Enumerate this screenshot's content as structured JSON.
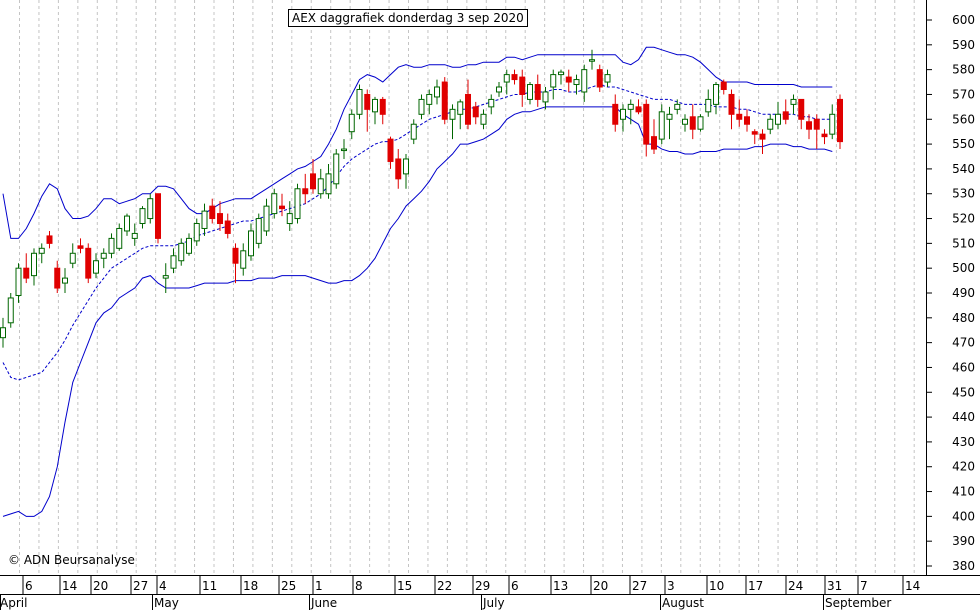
{
  "chart_data": {
    "type": "candlestick",
    "title": "AEX daggrafiek donderdag 3 sep 2020",
    "copyright": "© ADN Beursanalyse",
    "ylim": [
      375,
      605
    ],
    "y_ticks": [
      380,
      390,
      400,
      410,
      420,
      430,
      440,
      450,
      460,
      470,
      480,
      490,
      500,
      510,
      520,
      530,
      540,
      550,
      560,
      570,
      580,
      590,
      600
    ],
    "grid": true,
    "x_day_ticks": [
      {
        "label": "6"
      },
      {
        "label": "14"
      },
      {
        "label": "20"
      },
      {
        "label": "27"
      },
      {
        "label": "4"
      },
      {
        "label": "11"
      },
      {
        "label": "18"
      },
      {
        "label": "25"
      },
      {
        "label": "1"
      },
      {
        "label": "8"
      },
      {
        "label": "15"
      },
      {
        "label": "22"
      },
      {
        "label": "29"
      },
      {
        "label": "6"
      },
      {
        "label": "13"
      },
      {
        "label": "20"
      },
      {
        "label": "27"
      },
      {
        "label": "3"
      },
      {
        "label": "10"
      },
      {
        "label": "17"
      },
      {
        "label": "24"
      },
      {
        "label": "31"
      },
      {
        "label": "7"
      },
      {
        "label": "14"
      }
    ],
    "x_months": [
      "April",
      "May",
      "June",
      "July",
      "August",
      "September"
    ],
    "series": [
      {
        "values": [
          [
            472,
            480,
            468,
            476
          ],
          [
            478,
            490,
            476,
            488
          ],
          [
            489,
            502,
            486,
            500
          ],
          [
            500,
            506,
            494,
            496
          ],
          [
            497,
            508,
            493,
            506
          ],
          [
            506,
            510,
            502,
            508
          ],
          [
            513,
            515,
            508,
            510
          ],
          [
            500,
            503,
            490,
            492
          ],
          [
            494,
            500,
            490,
            496
          ],
          [
            502,
            510,
            500,
            506
          ],
          [
            509,
            512,
            506,
            508
          ],
          [
            508,
            510,
            494,
            496
          ],
          [
            498,
            506,
            496,
            503
          ],
          [
            504,
            508,
            500,
            506
          ],
          [
            506,
            514,
            504,
            512
          ],
          [
            508,
            518,
            507,
            516
          ],
          [
            515,
            522,
            513,
            521
          ],
          [
            512,
            518,
            509,
            514
          ],
          [
            518,
            525,
            516,
            524
          ],
          [
            520,
            530,
            518,
            528
          ],
          [
            530,
            530,
            510,
            512
          ],
          [
            496,
            502,
            490,
            497
          ],
          [
            500,
            508,
            498,
            505
          ],
          [
            503,
            512,
            501,
            510
          ],
          [
            506,
            514,
            505,
            512
          ],
          [
            511,
            520,
            509,
            518
          ],
          [
            516,
            526,
            513,
            523
          ],
          [
            525,
            528,
            518,
            520
          ],
          [
            522,
            527,
            515,
            518
          ],
          [
            519,
            522,
            512,
            514
          ],
          [
            508,
            510,
            494,
            502
          ],
          [
            500,
            510,
            497,
            507
          ],
          [
            505,
            518,
            503,
            515
          ],
          [
            510,
            522,
            508,
            520
          ],
          [
            515,
            528,
            513,
            525
          ],
          [
            522,
            532,
            520,
            530
          ],
          [
            525,
            530,
            521,
            524
          ],
          [
            518,
            527,
            515,
            522
          ],
          [
            520,
            534,
            518,
            532
          ],
          [
            532,
            538,
            526,
            530
          ],
          [
            538,
            544,
            530,
            532
          ],
          [
            530,
            540,
            528,
            536
          ],
          [
            530,
            542,
            528,
            538
          ],
          [
            534,
            548,
            532,
            546
          ],
          [
            548,
            552,
            544,
            548
          ],
          [
            555,
            564,
            552,
            562
          ],
          [
            562,
            574,
            560,
            572
          ],
          [
            570,
            572,
            555,
            564
          ],
          [
            563,
            569,
            558,
            568
          ],
          [
            568,
            569,
            558,
            562
          ],
          [
            552,
            553,
            540,
            543
          ],
          [
            544,
            548,
            532,
            536
          ],
          [
            538,
            546,
            532,
            544
          ],
          [
            552,
            560,
            550,
            558
          ],
          [
            562,
            570,
            560,
            568
          ],
          [
            566,
            572,
            562,
            570
          ],
          [
            569,
            576,
            566,
            573
          ],
          [
            575,
            577,
            558,
            560
          ],
          [
            560,
            566,
            552,
            564
          ],
          [
            562,
            568,
            556,
            567
          ],
          [
            570,
            576,
            556,
            558
          ],
          [
            565,
            567,
            558,
            561
          ],
          [
            558,
            564,
            556,
            562
          ],
          [
            565,
            570,
            562,
            568
          ],
          [
            571,
            575,
            569,
            573
          ],
          [
            575,
            580,
            570,
            578
          ],
          [
            578,
            580,
            574,
            576
          ],
          [
            577,
            580,
            565,
            570
          ],
          [
            568,
            575,
            566,
            574
          ],
          [
            574,
            578,
            565,
            568
          ],
          [
            567,
            573,
            564,
            571
          ],
          [
            573,
            580,
            568,
            578
          ],
          [
            578,
            580,
            574,
            579
          ],
          [
            577,
            580,
            571,
            575
          ],
          [
            574,
            578,
            570,
            576
          ],
          [
            571,
            582,
            567,
            580
          ],
          [
            584,
            588,
            580,
            584
          ],
          [
            580,
            582,
            571,
            573
          ],
          [
            575,
            580,
            573,
            578
          ],
          [
            566,
            570,
            555,
            558
          ],
          [
            560,
            566,
            555,
            564
          ],
          [
            564,
            568,
            558,
            566
          ],
          [
            565,
            568,
            562,
            563
          ],
          [
            566,
            568,
            545,
            550
          ],
          [
            553,
            560,
            546,
            548
          ],
          [
            552,
            566,
            550,
            563
          ],
          [
            560,
            565,
            552,
            562
          ],
          [
            564,
            568,
            562,
            566
          ],
          [
            558,
            562,
            555,
            560
          ],
          [
            561,
            566,
            552,
            556
          ],
          [
            556,
            562,
            555,
            561
          ],
          [
            563,
            572,
            561,
            568
          ],
          [
            566,
            575,
            562,
            574
          ],
          [
            575,
            576,
            570,
            572
          ],
          [
            570,
            572,
            556,
            562
          ],
          [
            562,
            568,
            557,
            560
          ],
          [
            561,
            564,
            555,
            558
          ],
          [
            555,
            556,
            550,
            554
          ],
          [
            554,
            556,
            546,
            552
          ],
          [
            556,
            562,
            554,
            560
          ],
          [
            558,
            567,
            556,
            562
          ],
          [
            563,
            568,
            558,
            560
          ],
          [
            566,
            570,
            562,
            568
          ],
          [
            568,
            568,
            556,
            560
          ],
          [
            559,
            562,
            552,
            556
          ],
          [
            560,
            562,
            548,
            556
          ],
          [
            554,
            556,
            550,
            553
          ],
          [
            554,
            566,
            552,
            562
          ],
          [
            568,
            570,
            548,
            551
          ]
        ]
      },
      {
        "values": [
          [
            462,
            456,
            455,
            456,
            457,
            458,
            462,
            466,
            471,
            477,
            482,
            487,
            492,
            496,
            500,
            502,
            504,
            506,
            508,
            509,
            509,
            509,
            509,
            510,
            511,
            513,
            514,
            515,
            516,
            517,
            518,
            519,
            519,
            520,
            521,
            522,
            523,
            524,
            525,
            526,
            528,
            530,
            533,
            537,
            541,
            544,
            546,
            548,
            550,
            551,
            551,
            552,
            554,
            556,
            558,
            560,
            561,
            562,
            563,
            564,
            564,
            565,
            566,
            567,
            568,
            569,
            570,
            570,
            571,
            571,
            571,
            572,
            572,
            571,
            571,
            572,
            573,
            574,
            573,
            573,
            572,
            571,
            570,
            569,
            568,
            568,
            568,
            567,
            566,
            566,
            566,
            566,
            565,
            565,
            565,
            564,
            564,
            563,
            562,
            562,
            562,
            562,
            562,
            561,
            561,
            560,
            560,
            560
          ]
        ]
      },
      {
        "values": [
          [
            530,
            512,
            512,
            516,
            522,
            529,
            534,
            532,
            524,
            520,
            520,
            521,
            524,
            528,
            528,
            526,
            527,
            528,
            530,
            530,
            533,
            533,
            532,
            528,
            524,
            522,
            522,
            524,
            526,
            527,
            528,
            528,
            528,
            530,
            532,
            534,
            536,
            538,
            540,
            541,
            543,
            545,
            550,
            556,
            564,
            570,
            576,
            578,
            577,
            575,
            578,
            581,
            582,
            581,
            581,
            582,
            582,
            582,
            581,
            581,
            582,
            582,
            583,
            583,
            583,
            585,
            585,
            584,
            585,
            586,
            586,
            586,
            586,
            586,
            586,
            586,
            586,
            586,
            586,
            586,
            583,
            582,
            584,
            589,
            589,
            588,
            587,
            586,
            586,
            585,
            583,
            580,
            577,
            575,
            575,
            575,
            575,
            574,
            574,
            574,
            574,
            574,
            574,
            573,
            573,
            573,
            573,
            573
          ]
        ]
      },
      {
        "values": [
          [
            400,
            401,
            402,
            400,
            400,
            402,
            408,
            420,
            438,
            454,
            462,
            470,
            478,
            482,
            484,
            488,
            490,
            492,
            496,
            497,
            494,
            492,
            492,
            492,
            492,
            493,
            494,
            494,
            494,
            494,
            495,
            495,
            495,
            496,
            496,
            496,
            497,
            497,
            497,
            497,
            496,
            495,
            494,
            494,
            495,
            495,
            497,
            500,
            504,
            510,
            516,
            520,
            525,
            528,
            531,
            535,
            540,
            543,
            546,
            550,
            550,
            551,
            552,
            554,
            556,
            560,
            562,
            563,
            563,
            564,
            565,
            565,
            565,
            565,
            565,
            565,
            565,
            565,
            565,
            565,
            562,
            560,
            558,
            550,
            550,
            548,
            547,
            547,
            546,
            546,
            547,
            547,
            547,
            548,
            548,
            548,
            548,
            549,
            549,
            550,
            550,
            550,
            549,
            549,
            548,
            548,
            548,
            547
          ]
        ]
      }
    ]
  }
}
